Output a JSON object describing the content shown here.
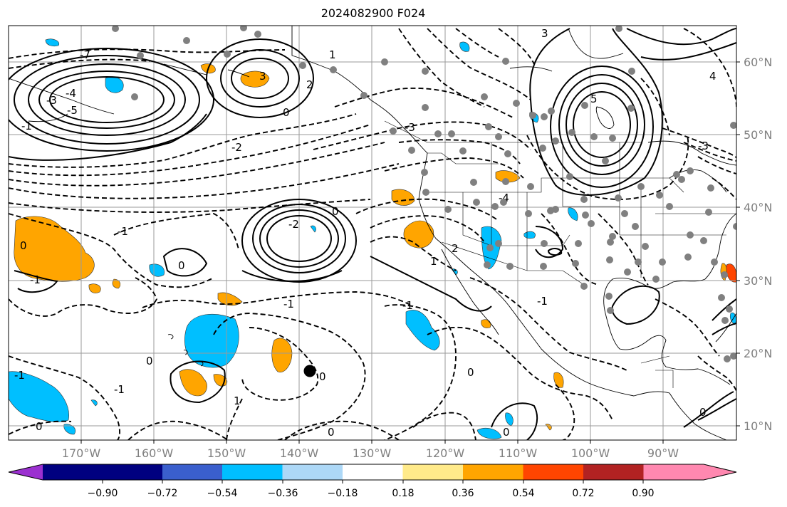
{
  "title": "2024082900 F024",
  "map": {
    "lon_labels": [
      "170°W",
      "160°W",
      "150°W",
      "140°W",
      "130°W",
      "120°W",
      "110°W",
      "100°W",
      "90°W"
    ],
    "lat_labels": [
      "60°N",
      "50°N",
      "40°N",
      "30°N",
      "20°N",
      "10°N"
    ]
  },
  "colorbar": {
    "colors": [
      "#9b30d0",
      "#000080",
      "#3a5fcd",
      "#00bfff",
      "#add8f7",
      "#ffffff",
      "#ffea8a",
      "#ffa500",
      "#ff4500",
      "#b22222",
      "#ff88b0"
    ],
    "tick_labels": [
      "−0.90",
      "−0.72",
      "−0.54",
      "−0.36",
      "−0.18",
      "0.18",
      "0.36",
      "0.54",
      "0.72",
      "0.90"
    ]
  },
  "contour_labels": [
    "3",
    "2",
    "0",
    "1",
    "-1",
    "-2",
    "-3",
    "-4",
    "4",
    "5",
    "-5",
    "-7",
    "-1",
    "0",
    "0",
    "-1",
    "-1",
    "0",
    "1",
    "-2",
    "2",
    "-1",
    "0",
    "0",
    "0",
    "0",
    "-1",
    "-1",
    "0",
    "-1",
    "0",
    "0",
    "-3",
    "-4",
    "-3",
    "1",
    "3"
  ]
}
